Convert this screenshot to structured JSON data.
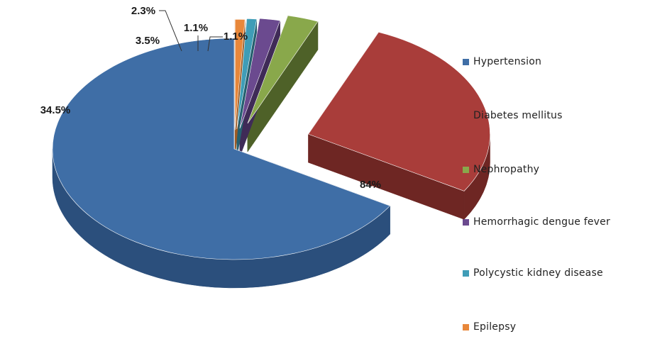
{
  "chart_data": {
    "type": "pie",
    "style": "3d-exploded",
    "legend_position": "right",
    "slices": [
      {
        "name": "Hypertension",
        "value": 84,
        "label": "84%",
        "color": "#3f6ea6",
        "side": "#2b4f7c"
      },
      {
        "name": "Diabetes mellitus",
        "value": 34.5,
        "label": "34.5%",
        "color": "#a93d3a",
        "side": "#6e2623"
      },
      {
        "name": "Nephropathy",
        "value": 3.5,
        "label": "3.5%",
        "color": "#89a84b",
        "side": "#4e6128"
      },
      {
        "name": "Hemorrhagic dengue fever",
        "value": 2.3,
        "label": "2.3%",
        "color": "#6b4a8f",
        "side": "#3f2b57"
      },
      {
        "name": "Polycystic kidney disease",
        "value": 1.1,
        "label": "1.1%",
        "color": "#3f9db7",
        "side": "#25606f"
      },
      {
        "name": "Epilepsy",
        "value": 1.1,
        "label": "1.1%",
        "color": "#e8873a",
        "side": "#9c5a24"
      }
    ]
  }
}
